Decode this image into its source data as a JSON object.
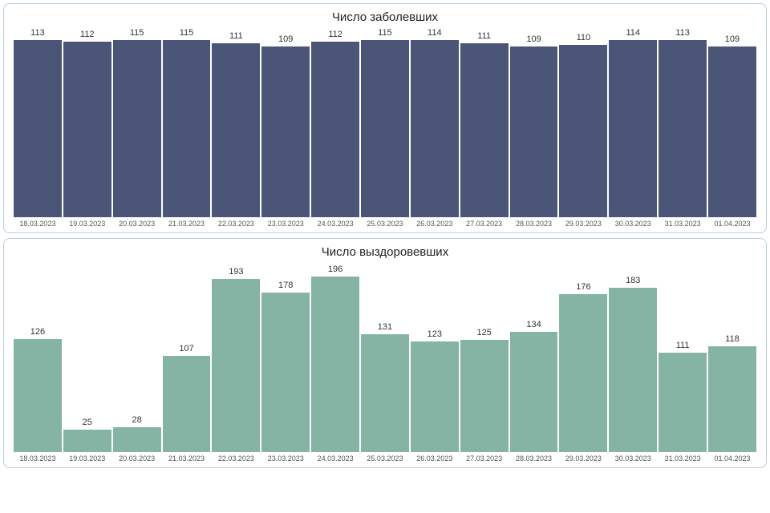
{
  "charts": [
    {
      "title": "Число заболевших",
      "type": "bar",
      "bar_color": "#4a5578",
      "title_fontsize": 15,
      "label_fontsize": 11,
      "tick_fontsize": 9,
      "background_color": "#ffffff",
      "border_color": "#b8cde0",
      "ylim_max": 120,
      "categories": [
        "18.03.2023",
        "19.03.2023",
        "20.03.2023",
        "21.03.2023",
        "22.03.2023",
        "23.03.2023",
        "24.03.2023",
        "25.03.2023",
        "26.03.2023",
        "27.03.2023",
        "28.03.2023",
        "29.03.2023",
        "30.03.2023",
        "31.03.2023",
        "01.04.2023"
      ],
      "values": [
        113,
        112,
        115,
        115,
        111,
        109,
        112,
        115,
        114,
        111,
        109,
        110,
        114,
        113,
        109
      ]
    },
    {
      "title": "Число выздоровевших",
      "type": "bar",
      "bar_color": "#85b3a4",
      "title_fontsize": 15,
      "label_fontsize": 11,
      "tick_fontsize": 9,
      "background_color": "#ffffff",
      "border_color": "#b8cde0",
      "ylim_max": 210,
      "categories": [
        "18.03.2023",
        "19.03.2023",
        "20.03.2023",
        "21.03.2023",
        "22.03.2023",
        "23.03.2023",
        "24.03.2023",
        "25.03.2023",
        "26.03.2023",
        "27.03.2023",
        "28.03.2023",
        "29.03.2023",
        "30.03.2023",
        "31.03.2023",
        "01.04.2023"
      ],
      "values": [
        126,
        25,
        28,
        107,
        193,
        178,
        196,
        131,
        123,
        125,
        134,
        176,
        183,
        111,
        118
      ]
    }
  ]
}
